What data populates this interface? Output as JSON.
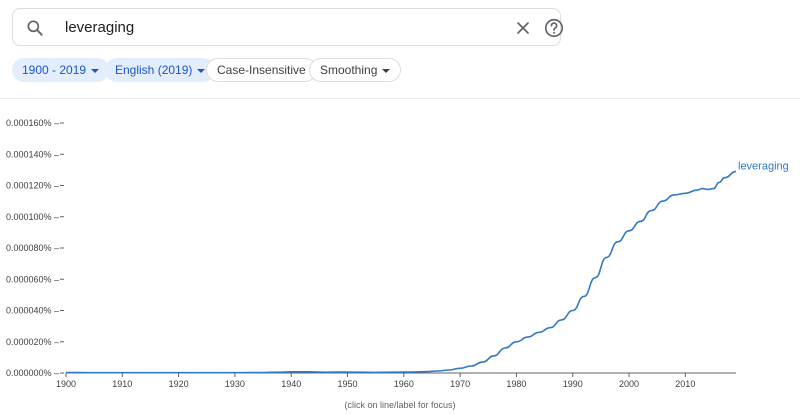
{
  "search": {
    "query": "leveraging"
  },
  "filters": {
    "year_range": "1900 - 2019",
    "corpus": "English (2019)",
    "case": "Case-Insensitive",
    "smoothing": "Smoothing"
  },
  "colors": {
    "series": "#3178c6",
    "chip_bg": "#e3edfb",
    "chip_text": "#1a57c8"
  },
  "icons": [
    "search-icon",
    "close-icon",
    "help-icon",
    "chevron-down-icon"
  ],
  "chart_data": {
    "type": "line",
    "y_ticks": [
      "0.000000%",
      "0.000020%",
      "0.000040%",
      "0.000060%",
      "0.000080%",
      "0.000100%",
      "0.000120%",
      "0.000140%",
      "0.000160%"
    ],
    "x_ticks": [
      "1900",
      "1910",
      "1920",
      "1930",
      "1940",
      "1950",
      "1960",
      "1970",
      "1980",
      "1990",
      "2000",
      "2010"
    ],
    "xlim": [
      1900,
      2019
    ],
    "ylim": [
      0,
      0.00016
    ],
    "footer": "(click on line/label for focus)",
    "series": [
      {
        "name": "leveraging",
        "x": [
          1900,
          1905,
          1910,
          1915,
          1920,
          1925,
          1930,
          1935,
          1938,
          1940,
          1942,
          1944,
          1946,
          1948,
          1950,
          1952,
          1955,
          1958,
          1960,
          1962,
          1964,
          1966,
          1968,
          1970,
          1972,
          1974,
          1976,
          1978,
          1980,
          1982,
          1984,
          1986,
          1988,
          1990,
          1992,
          1994,
          1996,
          1998,
          2000,
          2002,
          2004,
          2006,
          2008,
          2010,
          2012,
          2013,
          2014,
          2015,
          2016,
          2017,
          2019
        ],
        "y": [
          3e-07,
          2e-07,
          2e-07,
          2e-07,
          2e-07,
          2e-07,
          2e-07,
          3e-07,
          5e-07,
          8e-07,
          8e-07,
          7e-07,
          5e-07,
          6e-07,
          6e-07,
          5e-07,
          4e-07,
          5e-07,
          6e-07,
          7e-07,
          9e-07,
          1.3e-06,
          1.9e-06,
          3e-06,
          4.5e-06,
          7e-06,
          1.1e-05,
          1.6e-05,
          2e-05,
          2.3e-05,
          2.6e-05,
          2.9e-05,
          3.4e-05,
          4e-05,
          4.9e-05,
          6.1e-05,
          7.4e-05,
          8.4e-05,
          9.1e-05,
          9.7e-05,
          0.000104,
          0.00011,
          0.000114,
          0.000115,
          0.000117,
          0.000118,
          0.0001175,
          0.000118,
          0.000122,
          0.000125,
          0.000129
        ]
      }
    ]
  }
}
